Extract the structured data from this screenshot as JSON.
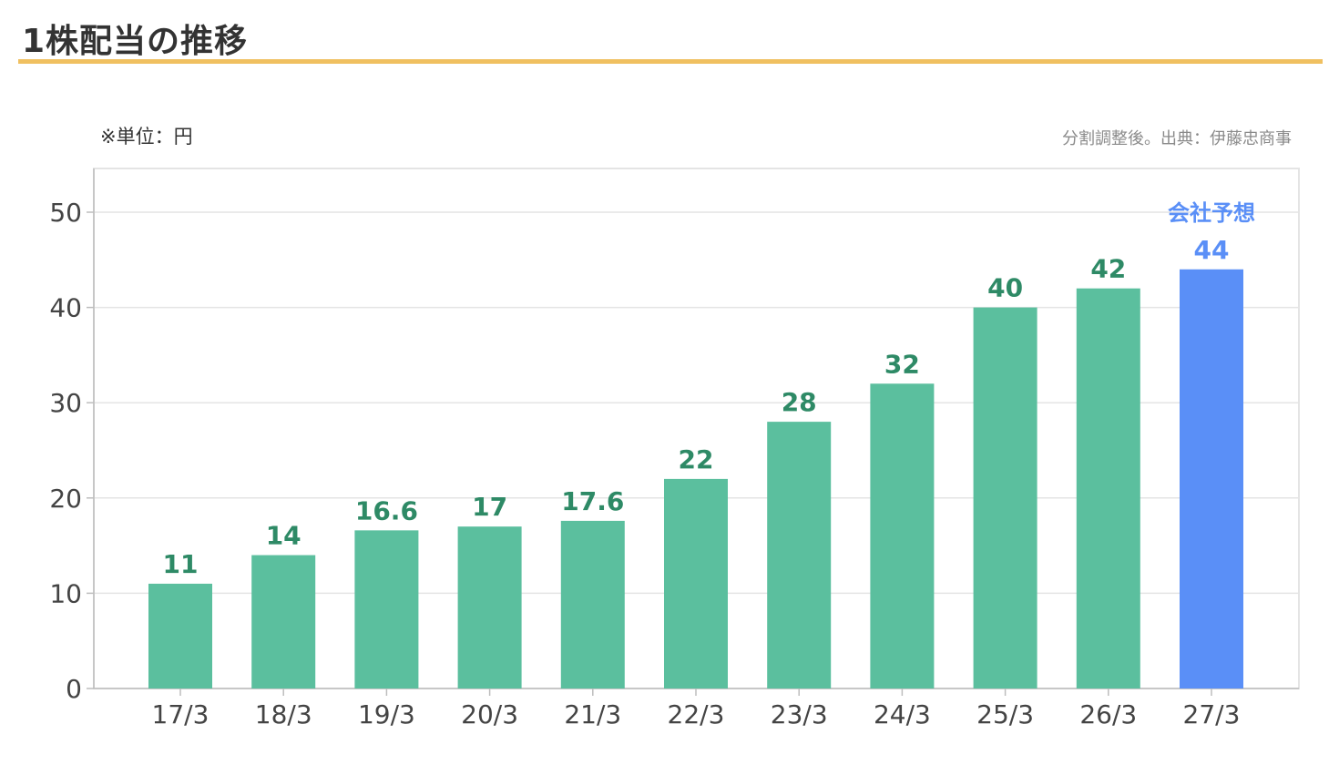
{
  "title": "1株配当の推移",
  "unit_note": "※単位：円",
  "source_note": "分割調整後。出典：伊藤忠商事",
  "colors": {
    "title_underline": "#f0c060",
    "actual_bar": "#5bbf9e",
    "actual_label": "#2e8a66",
    "forecast_bar": "#5a8ff7",
    "forecast_label": "#5a8ff7",
    "grid": "#e4e4e4",
    "axis": "#bdbdbd",
    "tick_text": "#444444"
  },
  "chart_data": {
    "type": "bar",
    "categories": [
      "17/3",
      "18/3",
      "19/3",
      "20/3",
      "21/3",
      "22/3",
      "23/3",
      "24/3",
      "25/3",
      "26/3",
      "27/3"
    ],
    "values": [
      11,
      14,
      16.6,
      17,
      17.6,
      22,
      28,
      32,
      40,
      42,
      44
    ],
    "value_labels": [
      "11",
      "14",
      "16.6",
      "17",
      "17.6",
      "22",
      "28",
      "32",
      "40",
      "42",
      "44"
    ],
    "forecast_index": 10,
    "forecast_annotation": "会社予想",
    "yticks": [
      0,
      10,
      20,
      30,
      40,
      50
    ],
    "ylim": [
      0,
      50
    ],
    "grid": true,
    "xlabel": "",
    "ylabel": ""
  }
}
